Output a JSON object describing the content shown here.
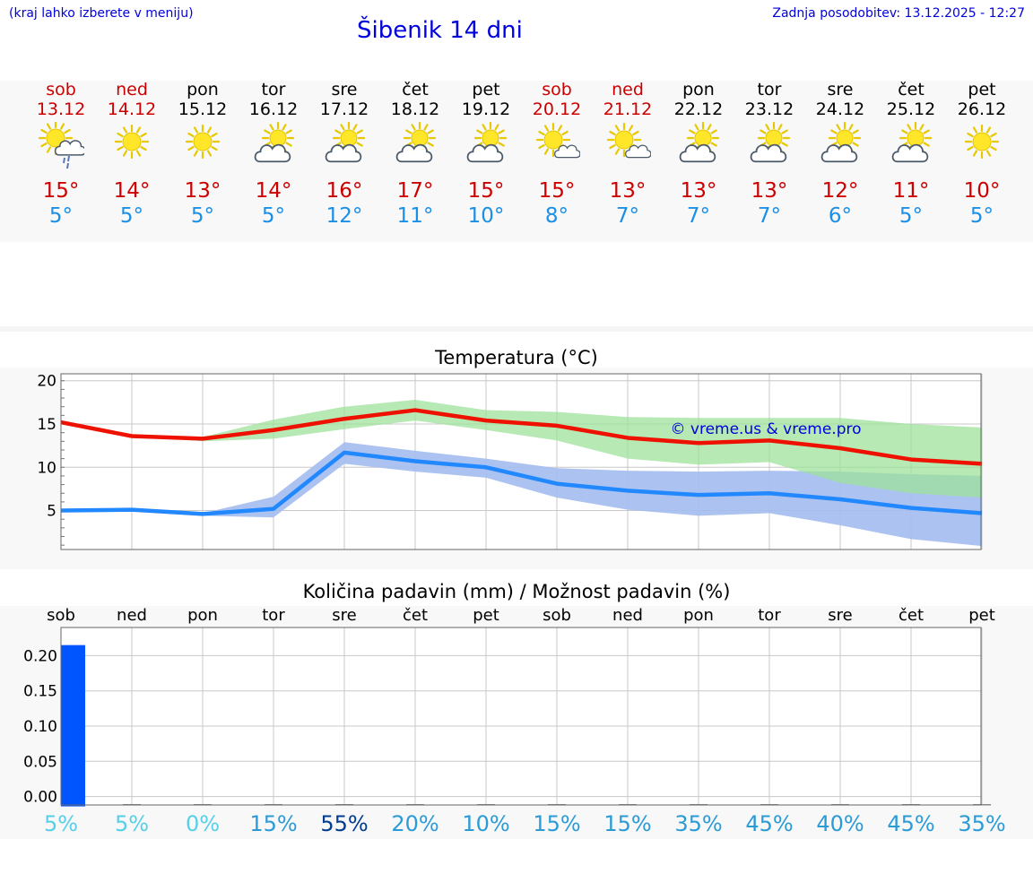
{
  "header": {
    "menu_hint": "(kraj lahko izberete v meniju)",
    "title": "Šibenik 14 dni",
    "last_update": "Zadnja posodobitev: 13.12.2025 - 12:27"
  },
  "days": [
    {
      "name": "sob",
      "date": "13.12",
      "max": "15°",
      "min": "5°",
      "icon": "sun-cloud-rain-icon",
      "weekend": true
    },
    {
      "name": "ned",
      "date": "14.12",
      "max": "14°",
      "min": "5°",
      "icon": "sun-icon",
      "weekend": true
    },
    {
      "name": "pon",
      "date": "15.12",
      "max": "13°",
      "min": "5°",
      "icon": "sun-icon",
      "weekend": false
    },
    {
      "name": "tor",
      "date": "16.12",
      "max": "14°",
      "min": "5°",
      "icon": "cloud-sun-icon",
      "weekend": false
    },
    {
      "name": "sre",
      "date": "17.12",
      "max": "16°",
      "min": "12°",
      "icon": "cloud-sun-icon",
      "weekend": false
    },
    {
      "name": "čet",
      "date": "18.12",
      "max": "17°",
      "min": "11°",
      "icon": "cloud-sun-icon",
      "weekend": false
    },
    {
      "name": "pet",
      "date": "19.12",
      "max": "15°",
      "min": "10°",
      "icon": "cloud-sun-icon",
      "weekend": false
    },
    {
      "name": "sob",
      "date": "20.12",
      "max": "15°",
      "min": "8°",
      "icon": "sun-small-cloud-icon",
      "weekend": true
    },
    {
      "name": "ned",
      "date": "21.12",
      "max": "13°",
      "min": "7°",
      "icon": "sun-small-cloud-icon",
      "weekend": true
    },
    {
      "name": "pon",
      "date": "22.12",
      "max": "13°",
      "min": "7°",
      "icon": "cloud-sun-icon",
      "weekend": false
    },
    {
      "name": "tor",
      "date": "23.12",
      "max": "13°",
      "min": "7°",
      "icon": "cloud-sun-icon",
      "weekend": false
    },
    {
      "name": "sre",
      "date": "24.12",
      "max": "12°",
      "min": "6°",
      "icon": "cloud-sun-icon",
      "weekend": false
    },
    {
      "name": "čet",
      "date": "25.12",
      "max": "11°",
      "min": "5°",
      "icon": "cloud-sun-icon",
      "weekend": false
    },
    {
      "name": "pet",
      "date": "26.12",
      "max": "10°",
      "min": "5°",
      "icon": "sun-icon",
      "weekend": false
    }
  ],
  "colors": {
    "link_blue": "#0000dd",
    "max_red": "#cc0000",
    "min_blue": "#1a8fe6",
    "temp_max_line": "#ee1100",
    "temp_min_line": "#2288ff",
    "max_band": "#9de29a",
    "min_band": "#a3bdf0",
    "precip_bar": "#0055ff"
  },
  "chart_data": [
    {
      "type": "line",
      "title": "Temperatura (°C)",
      "watermark": "© vreme.us & vreme.pro",
      "x": [
        0,
        1,
        2,
        3,
        4,
        5,
        6,
        7,
        8,
        9,
        10,
        11,
        12,
        13
      ],
      "ylim": [
        0.5,
        20.8
      ],
      "yticks": [
        5,
        10,
        15,
        20
      ],
      "ytick_labels": [
        "5",
        "10",
        "15",
        "20"
      ],
      "grid": true,
      "series": [
        {
          "name": "max",
          "values": [
            15.2,
            13.6,
            13.3,
            14.3,
            15.6,
            16.6,
            15.4,
            14.8,
            13.4,
            12.8,
            13.1,
            12.2,
            10.9,
            10.4
          ],
          "band_low": [
            15.2,
            13.6,
            13.0,
            13.3,
            14.4,
            15.4,
            14.3,
            13.1,
            11.0,
            10.3,
            10.6,
            8.2,
            7.0,
            6.5
          ],
          "band_high": [
            15.2,
            13.6,
            13.5,
            15.5,
            17.0,
            17.8,
            16.6,
            16.4,
            15.8,
            15.7,
            15.7,
            15.7,
            15.0,
            14.6
          ]
        },
        {
          "name": "min",
          "values": [
            5.0,
            5.1,
            4.6,
            5.2,
            11.7,
            10.7,
            10.0,
            8.1,
            7.3,
            6.8,
            7.0,
            6.3,
            5.3,
            4.7
          ],
          "band_low": [
            5.0,
            5.1,
            4.4,
            4.2,
            10.4,
            9.5,
            8.8,
            6.5,
            5.1,
            4.4,
            4.7,
            3.3,
            1.7,
            0.9
          ],
          "band_high": [
            5.0,
            5.1,
            4.7,
            6.6,
            12.9,
            11.9,
            11.0,
            9.9,
            9.6,
            9.5,
            9.6,
            9.5,
            9.2,
            9.0
          ]
        }
      ]
    },
    {
      "type": "bar",
      "title": "Količina padavin (mm) / Možnost padavin (%)",
      "categories": [
        "sob",
        "ned",
        "pon",
        "tor",
        "sre",
        "čet",
        "pet",
        "sob",
        "ned",
        "pon",
        "tor",
        "sre",
        "čet",
        "pet"
      ],
      "values": [
        0.215,
        0,
        0,
        0,
        0,
        0,
        0,
        0,
        0,
        0,
        0,
        0,
        0,
        0
      ],
      "ylim": [
        -0.012,
        0.24
      ],
      "yticks": [
        0.0,
        0.05,
        0.1,
        0.15,
        0.2
      ],
      "ytick_labels": [
        "0.00",
        "0.05",
        "0.10",
        "0.15",
        "0.20"
      ],
      "probability": [
        "5%",
        "5%",
        "0%",
        "15%",
        "55%",
        "20%",
        "10%",
        "15%",
        "15%",
        "35%",
        "45%",
        "40%",
        "45%",
        "35%"
      ],
      "probability_values": [
        5,
        5,
        0,
        15,
        55,
        20,
        10,
        15,
        15,
        35,
        45,
        40,
        45,
        35
      ],
      "grid": true
    }
  ]
}
